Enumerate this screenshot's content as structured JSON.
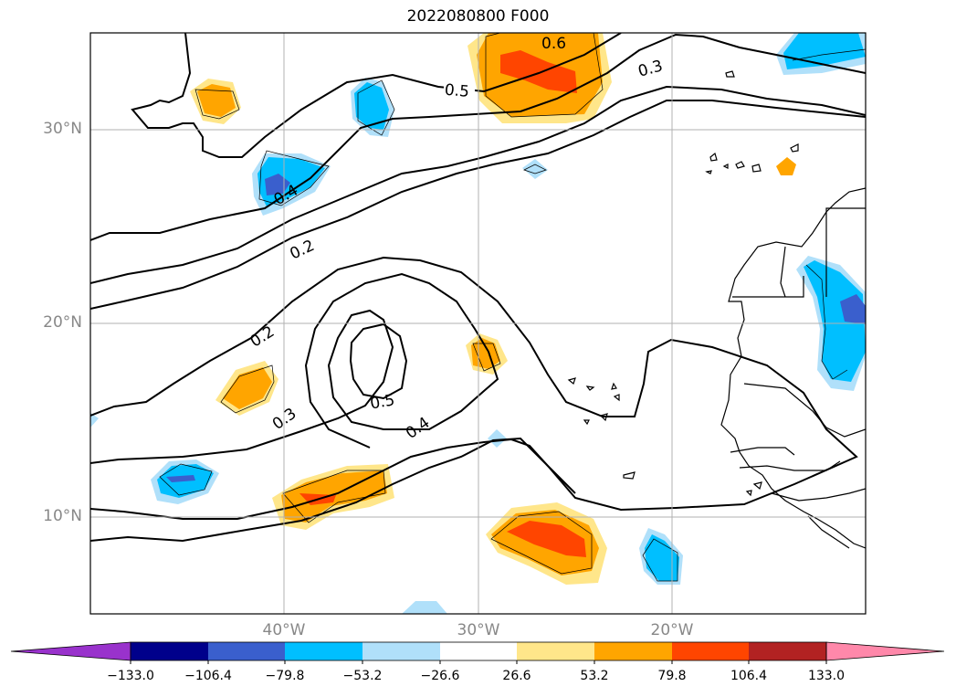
{
  "title": "2022080800 F000",
  "y_ticks": [
    "30°N",
    "20°N",
    "10°N"
  ],
  "x_ticks": [
    "40°W",
    "30°W",
    "20°W"
  ],
  "contour_labels": [
    "0.6",
    "0.5",
    "0.3",
    "0.4",
    "0.2",
    "0.2",
    "0.3",
    "0.5",
    "0.4"
  ],
  "colorbar": {
    "colors": [
      "#9932cc",
      "#00008b",
      "#3a5fcd",
      "#00bfff",
      "#b0e0fa",
      "#ffffff",
      "#ffe68a",
      "#ffa500",
      "#ff4500",
      "#b22222",
      "#ff88aa"
    ],
    "tick_labels": [
      "−133.0",
      "−106.4",
      "−79.8",
      "−53.2",
      "−26.6",
      "26.6",
      "53.2",
      "79.8",
      "106.4",
      "133.0"
    ]
  },
  "chart_data": {
    "type": "map",
    "projection": "lat-lon",
    "lon_range": [
      -50,
      -10
    ],
    "lat_range": [
      5,
      35
    ],
    "grid": true,
    "contour_levels": [
      0.2,
      0.3,
      0.4,
      0.5,
      0.6
    ],
    "fill_levels": [
      -133.0,
      -106.4,
      -79.8,
      -53.2,
      -26.6,
      26.6,
      53.2,
      79.8,
      106.4,
      133.0
    ],
    "colorbar_extend": "both"
  }
}
